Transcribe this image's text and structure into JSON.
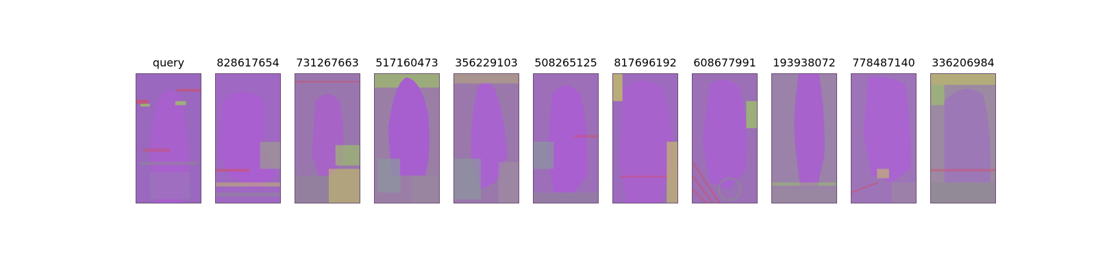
{
  "figure": {
    "panels": [
      {
        "label": "query"
      },
      {
        "label": "828617654"
      },
      {
        "label": "731267663"
      },
      {
        "label": "517160473"
      },
      {
        "label": "356229103"
      },
      {
        "label": "508265125"
      },
      {
        "label": "817696192"
      },
      {
        "label": "608677991"
      },
      {
        "label": "193938072"
      },
      {
        "label": "778487140"
      },
      {
        "label": "336206984"
      }
    ]
  },
  "colors": {
    "background_purple": "#9a62c4",
    "silhouette_purple": "#a860d0",
    "edge_green": "#9ccf5a",
    "edge_red": "#d0506a",
    "edge_grey": "#8c8a90",
    "edge_yellow": "#c7c85a"
  }
}
